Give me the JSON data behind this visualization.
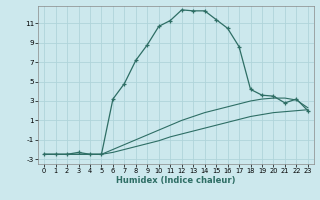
{
  "xlabel": "Humidex (Indice chaleur)",
  "bg_color": "#cce8ed",
  "grid_color": "#b0d4da",
  "line_color": "#2e6e65",
  "xlim": [
    -0.5,
    23.5
  ],
  "ylim": [
    -3.5,
    12.8
  ],
  "xticks": [
    0,
    1,
    2,
    3,
    4,
    5,
    6,
    7,
    8,
    9,
    10,
    11,
    12,
    13,
    14,
    15,
    16,
    17,
    18,
    19,
    20,
    21,
    22,
    23
  ],
  "yticks": [
    -3,
    -1,
    1,
    3,
    5,
    7,
    9,
    11
  ],
  "line_main_x": [
    0,
    1,
    2,
    3,
    4,
    5,
    6,
    7,
    8,
    9,
    10,
    11,
    12,
    13,
    14,
    15,
    16,
    17,
    18,
    19,
    20,
    21,
    22,
    23
  ],
  "line_main_y": [
    -2.5,
    -2.5,
    -2.5,
    -2.3,
    -2.5,
    -2.5,
    3.2,
    4.8,
    7.2,
    8.8,
    10.7,
    11.3,
    12.4,
    12.3,
    12.3,
    11.4,
    10.5,
    8.6,
    4.2,
    3.6,
    3.5,
    2.8,
    3.2,
    2.0
  ],
  "line_upper_x": [
    0,
    4,
    5,
    6,
    7,
    8,
    9,
    10,
    11,
    12,
    13,
    14,
    15,
    16,
    17,
    18,
    19,
    20,
    21,
    22,
    23
  ],
  "line_upper_y": [
    -2.5,
    -2.5,
    -2.5,
    -2.0,
    -1.5,
    -1.0,
    -0.5,
    0.0,
    0.5,
    1.0,
    1.4,
    1.8,
    2.1,
    2.4,
    2.7,
    3.0,
    3.2,
    3.3,
    3.3,
    3.1,
    2.3
  ],
  "line_lower_x": [
    0,
    4,
    5,
    6,
    7,
    8,
    9,
    10,
    11,
    12,
    13,
    14,
    15,
    16,
    17,
    18,
    19,
    20,
    21,
    22,
    23
  ],
  "line_lower_y": [
    -2.5,
    -2.5,
    -2.5,
    -2.3,
    -2.0,
    -1.7,
    -1.4,
    -1.1,
    -0.7,
    -0.4,
    -0.1,
    0.2,
    0.5,
    0.8,
    1.1,
    1.4,
    1.6,
    1.8,
    1.9,
    2.0,
    2.1
  ]
}
